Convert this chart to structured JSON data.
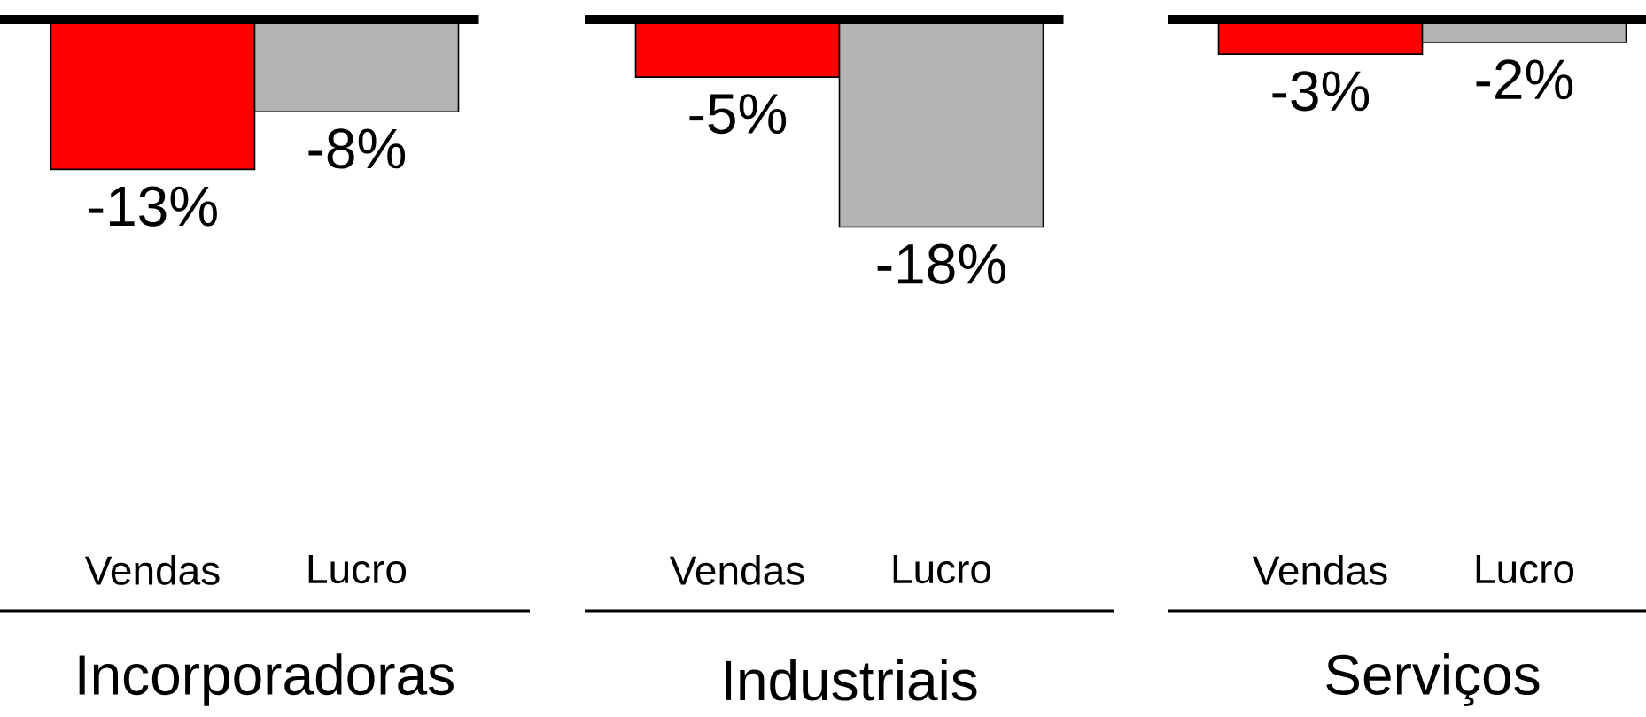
{
  "chart_data": [
    {
      "type": "bar",
      "categories": [
        "Vendas",
        "Lucro"
      ],
      "values": [
        -13,
        -8
      ],
      "colors": [
        "#ff0000",
        "#b3b3b3"
      ],
      "value_labels": [
        "-13%",
        "-8%"
      ],
      "xlabel": "Incorporadoras",
      "tick_labels": "x"
    },
    {
      "type": "bar",
      "categories": [
        "Vendas",
        "Lucro"
      ],
      "values": [
        -5,
        -18
      ],
      "colors": [
        "#ff0000",
        "#b3b3b3"
      ],
      "value_labels": [
        "-5%",
        "-18%"
      ],
      "xlabel": "Industriais",
      "tick_labels": "x"
    },
    {
      "type": "bar",
      "categories": [
        "Vendas",
        "Lucro"
      ],
      "values": [
        -3,
        -2
      ],
      "colors": [
        "#ff0000",
        "#b3b3b3"
      ],
      "value_labels": [
        "-3%",
        "-2%"
      ],
      "xlabel": "Serviços",
      "tick_labels": "x"
    }
  ]
}
